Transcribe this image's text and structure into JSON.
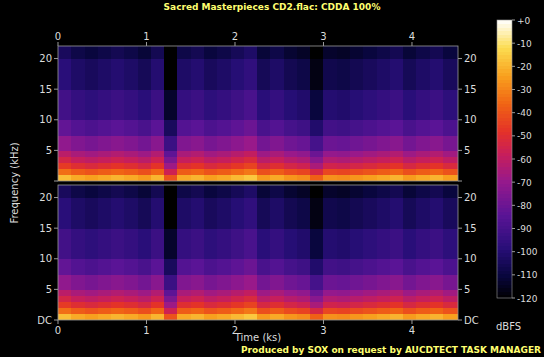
{
  "chart_data": {
    "type": "spectrogram",
    "title": "Sacred Masterpieces CD2.flac: CDDA 100%",
    "footer": "Produced by SOX on request by AUCDTECT TASK MANAGER",
    "x_label": "Time (ks)",
    "y_label": "Frequency (kHz)",
    "xlim": [
      0,
      4.52
    ],
    "xticks": [
      0,
      1,
      2,
      3,
      4
    ],
    "ylim": [
      0,
      22.05
    ],
    "yticks": [
      {
        "value": 0,
        "label": "DC"
      },
      5,
      10,
      15,
      20
    ],
    "x_edges": [
      0,
      0.15,
      0.3,
      0.45,
      0.6,
      0.75,
      0.9,
      1.05,
      1.2,
      1.35,
      1.5,
      1.65,
      1.8,
      1.95,
      2.1,
      2.25,
      2.4,
      2.55,
      2.7,
      2.85,
      3,
      3.15,
      3.3,
      3.45,
      3.6,
      3.75,
      3.9,
      4.05,
      4.2,
      4.35,
      4.52
    ],
    "y_edges": [
      0,
      1,
      2,
      3,
      4,
      5,
      7.5,
      10,
      15,
      20,
      22.05
    ],
    "channels": [
      {
        "cells": [
          [
            -18,
            -22,
            -24,
            -22,
            -20,
            -22,
            -25,
            -20,
            -40,
            -22,
            -20,
            -24,
            -22,
            -19,
            -16,
            -25,
            -22,
            -26,
            -28,
            -37,
            -27,
            -28,
            -26,
            -24,
            -22,
            -20,
            -25,
            -22,
            -20,
            -24
          ],
          [
            -34,
            -38,
            -40,
            -38,
            -36,
            -38,
            -41,
            -36,
            -56,
            -38,
            -36,
            -40,
            -38,
            -35,
            -32,
            -41,
            -38,
            -42,
            -44,
            -53,
            -43,
            -44,
            -42,
            -40,
            -38,
            -36,
            -41,
            -38,
            -36,
            -40
          ],
          [
            -46,
            -50,
            -52,
            -50,
            -48,
            -50,
            -53,
            -48,
            -68,
            -50,
            -48,
            -52,
            -50,
            -47,
            -44,
            -53,
            -50,
            -54,
            -56,
            -65,
            -55,
            -56,
            -54,
            -52,
            -50,
            -48,
            -53,
            -50,
            -48,
            -52
          ],
          [
            -54,
            -58,
            -60,
            -58,
            -56,
            -58,
            -61,
            -56,
            -76,
            -58,
            -56,
            -60,
            -58,
            -55,
            -52,
            -61,
            -58,
            -62,
            -64,
            -73,
            -63,
            -64,
            -62,
            -60,
            -58,
            -56,
            -61,
            -58,
            -56,
            -60
          ],
          [
            -61,
            -65,
            -67,
            -65,
            -63,
            -65,
            -68,
            -63,
            -83,
            -65,
            -63,
            -67,
            -65,
            -62,
            -59,
            -68,
            -65,
            -69,
            -71,
            -80,
            -70,
            -71,
            -69,
            -67,
            -65,
            -63,
            -68,
            -65,
            -63,
            -67
          ],
          [
            -71,
            -75,
            -77,
            -75,
            -73,
            -75,
            -78,
            -73,
            -93,
            -75,
            -73,
            -77,
            -75,
            -72,
            -69,
            -78,
            -75,
            -79,
            -81,
            -90,
            -80,
            -81,
            -79,
            -77,
            -75,
            -73,
            -78,
            -75,
            -73,
            -77
          ],
          [
            -82,
            -86,
            -88,
            -86,
            -84,
            -86,
            -89,
            -84,
            -104,
            -86,
            -84,
            -88,
            -86,
            -83,
            -80,
            -89,
            -86,
            -90,
            -92,
            -101,
            -91,
            -92,
            -90,
            -88,
            -86,
            -84,
            -89,
            -86,
            -84,
            -88
          ],
          [
            -91,
            -95,
            -97,
            -95,
            -93,
            -95,
            -98,
            -93,
            -113,
            -95,
            -93,
            -97,
            -95,
            -92,
            -89,
            -98,
            -95,
            -99,
            -101,
            -110,
            -100,
            -101,
            -99,
            -97,
            -95,
            -93,
            -98,
            -95,
            -93,
            -97
          ],
          [
            -98,
            -102,
            -104,
            -102,
            -100,
            -102,
            -105,
            -100,
            -120,
            -102,
            -100,
            -104,
            -102,
            -99,
            -96,
            -105,
            -102,
            -106,
            -108,
            -117,
            -107,
            -108,
            -106,
            -104,
            -102,
            -100,
            -105,
            -102,
            -100,
            -104
          ],
          [
            -104,
            -108,
            -110,
            -108,
            -106,
            -108,
            -111,
            -106,
            -120,
            -108,
            -106,
            -110,
            -108,
            -105,
            -102,
            -111,
            -108,
            -112,
            -114,
            -120,
            -113,
            -114,
            -112,
            -110,
            -108,
            -106,
            -111,
            -108,
            -106,
            -110
          ]
        ]
      },
      {
        "cells": [
          [
            -18,
            -22,
            -24,
            -22,
            -20,
            -22,
            -25,
            -20,
            -40,
            -22,
            -20,
            -24,
            -22,
            -19,
            -16,
            -25,
            -22,
            -26,
            -28,
            -37,
            -27,
            -28,
            -26,
            -24,
            -22,
            -20,
            -25,
            -22,
            -20,
            -24
          ],
          [
            -34,
            -38,
            -40,
            -38,
            -36,
            -38,
            -41,
            -36,
            -56,
            -38,
            -36,
            -40,
            -38,
            -35,
            -32,
            -41,
            -38,
            -42,
            -44,
            -53,
            -43,
            -44,
            -42,
            -40,
            -38,
            -36,
            -41,
            -38,
            -36,
            -40
          ],
          [
            -46,
            -50,
            -52,
            -50,
            -48,
            -50,
            -53,
            -48,
            -68,
            -50,
            -48,
            -52,
            -50,
            -47,
            -44,
            -53,
            -50,
            -54,
            -56,
            -65,
            -55,
            -56,
            -54,
            -52,
            -50,
            -48,
            -53,
            -50,
            -48,
            -52
          ],
          [
            -54,
            -58,
            -60,
            -58,
            -56,
            -58,
            -61,
            -56,
            -76,
            -58,
            -56,
            -60,
            -58,
            -55,
            -52,
            -61,
            -58,
            -62,
            -64,
            -73,
            -63,
            -64,
            -62,
            -60,
            -58,
            -56,
            -61,
            -58,
            -56,
            -60
          ],
          [
            -61,
            -65,
            -67,
            -65,
            -63,
            -65,
            -68,
            -63,
            -83,
            -65,
            -63,
            -67,
            -65,
            -62,
            -59,
            -68,
            -65,
            -69,
            -71,
            -80,
            -70,
            -71,
            -69,
            -67,
            -65,
            -63,
            -68,
            -65,
            -63,
            -67
          ],
          [
            -71,
            -75,
            -77,
            -75,
            -73,
            -75,
            -78,
            -73,
            -93,
            -75,
            -73,
            -77,
            -75,
            -72,
            -69,
            -78,
            -75,
            -79,
            -81,
            -90,
            -80,
            -81,
            -79,
            -77,
            -75,
            -73,
            -78,
            -75,
            -73,
            -77
          ],
          [
            -82,
            -86,
            -88,
            -86,
            -84,
            -86,
            -89,
            -84,
            -104,
            -86,
            -84,
            -88,
            -86,
            -83,
            -80,
            -89,
            -86,
            -90,
            -92,
            -101,
            -91,
            -92,
            -90,
            -88,
            -86,
            -84,
            -89,
            -86,
            -84,
            -88
          ],
          [
            -91,
            -95,
            -97,
            -95,
            -93,
            -95,
            -98,
            -93,
            -113,
            -95,
            -93,
            -97,
            -95,
            -92,
            -89,
            -98,
            -95,
            -99,
            -101,
            -110,
            -100,
            -101,
            -99,
            -97,
            -95,
            -93,
            -98,
            -95,
            -93,
            -97
          ],
          [
            -98,
            -102,
            -104,
            -102,
            -100,
            -102,
            -105,
            -100,
            -120,
            -102,
            -100,
            -104,
            -102,
            -99,
            -96,
            -105,
            -102,
            -106,
            -108,
            -117,
            -107,
            -108,
            -106,
            -104,
            -102,
            -100,
            -105,
            -102,
            -100,
            -104
          ],
          [
            -104,
            -108,
            -110,
            -108,
            -106,
            -108,
            -111,
            -106,
            -120,
            -108,
            -106,
            -110,
            -108,
            -105,
            -102,
            -111,
            -108,
            -112,
            -114,
            -120,
            -113,
            -114,
            -112,
            -110,
            -108,
            -106,
            -111,
            -108,
            -106,
            -110
          ]
        ]
      }
    ],
    "colorbar": {
      "label": "dBFS",
      "range": [
        -120,
        0
      ],
      "ticks": [
        {
          "value": 0,
          "label": "+0"
        },
        -10,
        -20,
        -30,
        -40,
        -50,
        -60,
        -70,
        -80,
        -90,
        -100,
        -110,
        -120
      ]
    }
  }
}
